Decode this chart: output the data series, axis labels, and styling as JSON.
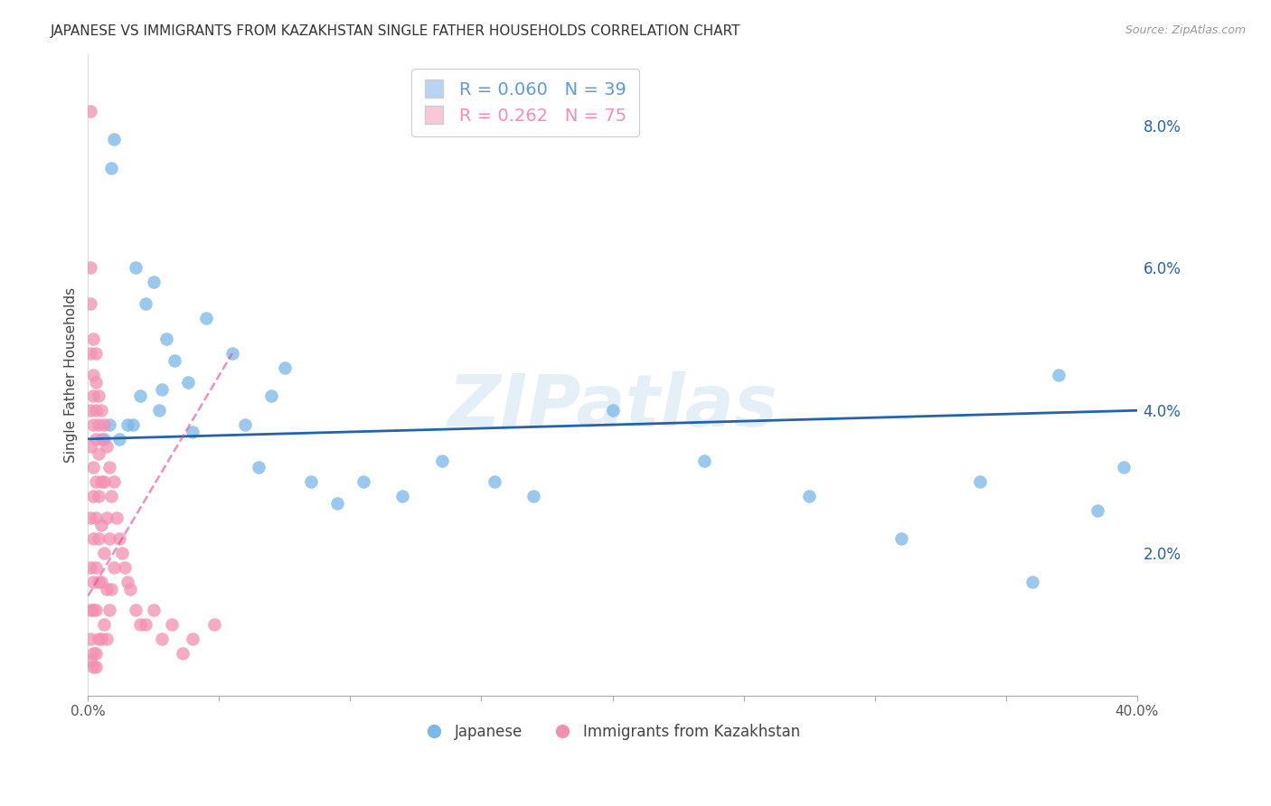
{
  "title": "JAPANESE VS IMMIGRANTS FROM KAZAKHSTAN SINGLE FATHER HOUSEHOLDS CORRELATION CHART",
  "source": "Source: ZipAtlas.com",
  "ylabel": "Single Father Households",
  "watermark": "ZIPatlas",
  "legend": [
    {
      "label": "R = 0.060   N = 39",
      "color": "#5b9bd5"
    },
    {
      "label": "R = 0.262   N = 75",
      "color": "#f48fb1"
    }
  ],
  "legend_labels_bottom": [
    "Japanese",
    "Immigrants from Kazakhstan"
  ],
  "xlim": [
    0,
    0.4
  ],
  "ylim": [
    0.0,
    0.09
  ],
  "blue_color": "#7ab8e8",
  "pink_color": "#f48fb1",
  "blue_line_color": "#2563a8",
  "pink_line_color": "#e84393",
  "grid_color": "#d0d0d0",
  "japanese_x": [
    0.006,
    0.008,
    0.009,
    0.01,
    0.012,
    0.015,
    0.017,
    0.018,
    0.02,
    0.022,
    0.025,
    0.027,
    0.028,
    0.03,
    0.033,
    0.038,
    0.04,
    0.045,
    0.055,
    0.06,
    0.065,
    0.07,
    0.075,
    0.085,
    0.095,
    0.105,
    0.12,
    0.135,
    0.155,
    0.17,
    0.2,
    0.235,
    0.275,
    0.31,
    0.34,
    0.36,
    0.37,
    0.385,
    0.395
  ],
  "japanese_y": [
    0.036,
    0.038,
    0.074,
    0.078,
    0.036,
    0.038,
    0.038,
    0.06,
    0.042,
    0.055,
    0.058,
    0.04,
    0.043,
    0.05,
    0.047,
    0.044,
    0.037,
    0.053,
    0.048,
    0.038,
    0.032,
    0.042,
    0.046,
    0.03,
    0.027,
    0.03,
    0.028,
    0.033,
    0.03,
    0.028,
    0.04,
    0.033,
    0.028,
    0.022,
    0.03,
    0.016,
    0.045,
    0.026,
    0.032
  ],
  "kaz_x": [
    0.001,
    0.001,
    0.001,
    0.001,
    0.001,
    0.001,
    0.001,
    0.001,
    0.001,
    0.001,
    0.001,
    0.002,
    0.002,
    0.002,
    0.002,
    0.002,
    0.002,
    0.002,
    0.002,
    0.002,
    0.002,
    0.002,
    0.003,
    0.003,
    0.003,
    0.003,
    0.003,
    0.003,
    0.003,
    0.003,
    0.003,
    0.003,
    0.004,
    0.004,
    0.004,
    0.004,
    0.004,
    0.004,
    0.004,
    0.005,
    0.005,
    0.005,
    0.005,
    0.005,
    0.005,
    0.006,
    0.006,
    0.006,
    0.006,
    0.007,
    0.007,
    0.007,
    0.007,
    0.008,
    0.008,
    0.008,
    0.009,
    0.009,
    0.01,
    0.01,
    0.011,
    0.012,
    0.013,
    0.014,
    0.015,
    0.016,
    0.018,
    0.02,
    0.022,
    0.025,
    0.028,
    0.032,
    0.036,
    0.04,
    0.048
  ],
  "kaz_y": [
    0.082,
    0.06,
    0.055,
    0.048,
    0.04,
    0.035,
    0.025,
    0.018,
    0.012,
    0.008,
    0.005,
    0.05,
    0.045,
    0.042,
    0.038,
    0.032,
    0.028,
    0.022,
    0.016,
    0.012,
    0.006,
    0.004,
    0.048,
    0.044,
    0.04,
    0.036,
    0.03,
    0.025,
    0.018,
    0.012,
    0.006,
    0.004,
    0.042,
    0.038,
    0.034,
    0.028,
    0.022,
    0.016,
    0.008,
    0.04,
    0.036,
    0.03,
    0.024,
    0.016,
    0.008,
    0.038,
    0.03,
    0.02,
    0.01,
    0.035,
    0.025,
    0.015,
    0.008,
    0.032,
    0.022,
    0.012,
    0.028,
    0.015,
    0.03,
    0.018,
    0.025,
    0.022,
    0.02,
    0.018,
    0.016,
    0.015,
    0.012,
    0.01,
    0.01,
    0.012,
    0.008,
    0.01,
    0.006,
    0.008,
    0.01
  ]
}
